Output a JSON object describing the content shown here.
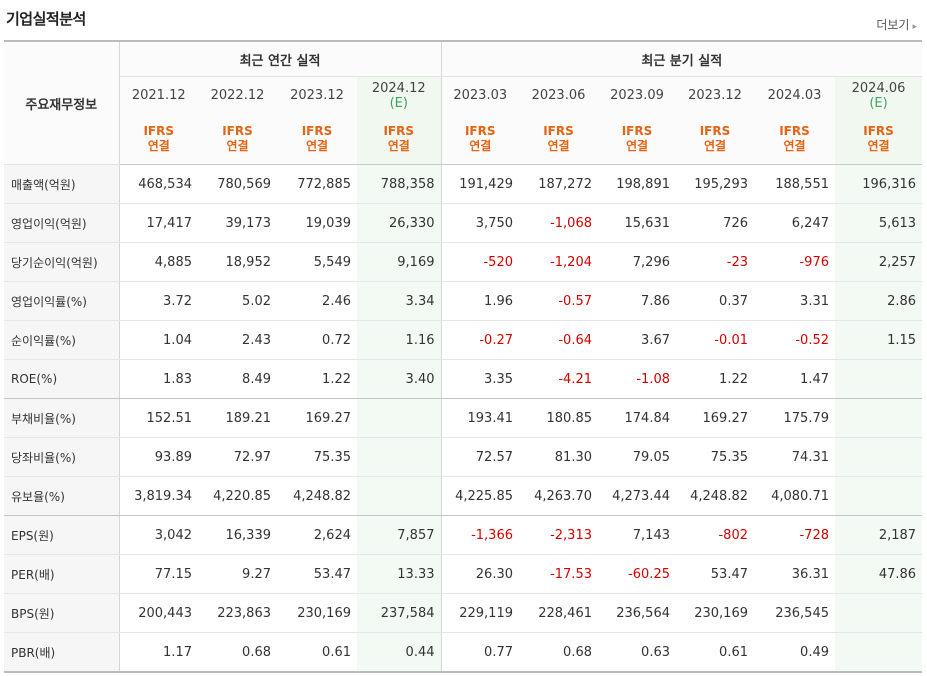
{
  "section_title": "기업실적분석",
  "more_label": "더보기",
  "more_arrow": "▸",
  "header": {
    "label_col": "주요재무정보",
    "annual_group": "최근 연간 실적",
    "quarter_group": "최근 분기 실적",
    "periods": [
      {
        "date": "2021.12",
        "est": ""
      },
      {
        "date": "2022.12",
        "est": ""
      },
      {
        "date": "2023.12",
        "est": ""
      },
      {
        "date": "2024.12",
        "est": "(E)"
      },
      {
        "date": "2023.03",
        "est": ""
      },
      {
        "date": "2023.06",
        "est": ""
      },
      {
        "date": "2023.09",
        "est": ""
      },
      {
        "date": "2023.12",
        "est": ""
      },
      {
        "date": "2024.03",
        "est": ""
      },
      {
        "date": "2024.06",
        "est": "(E)"
      }
    ],
    "std_line1": "IFRS",
    "std_line2": "연결"
  },
  "rows": [
    {
      "label": "매출액(억원)",
      "values": [
        "468,534",
        "780,569",
        "772,885",
        "788,358",
        "191,429",
        "187,272",
        "198,891",
        "195,293",
        "188,551",
        "196,316"
      ]
    },
    {
      "label": "영업이익(억원)",
      "values": [
        "17,417",
        "39,173",
        "19,039",
        "26,330",
        "3,750",
        "-1,068",
        "15,631",
        "726",
        "6,247",
        "5,613"
      ]
    },
    {
      "label": "당기순이익(억원)",
      "values": [
        "4,885",
        "18,952",
        "5,549",
        "9,169",
        "-520",
        "-1,204",
        "7,296",
        "-23",
        "-976",
        "2,257"
      ]
    },
    {
      "label": "영업이익률(%)",
      "values": [
        "3.72",
        "5.02",
        "2.46",
        "3.34",
        "1.96",
        "-0.57",
        "7.86",
        "0.37",
        "3.31",
        "2.86"
      ]
    },
    {
      "label": "순이익률(%)",
      "values": [
        "1.04",
        "2.43",
        "0.72",
        "1.16",
        "-0.27",
        "-0.64",
        "3.67",
        "-0.01",
        "-0.52",
        "1.15"
      ]
    },
    {
      "label": "ROE(%)",
      "values": [
        "1.83",
        "8.49",
        "1.22",
        "3.40",
        "3.35",
        "-4.21",
        "-1.08",
        "1.22",
        "1.47",
        ""
      ]
    },
    {
      "label": "부채비율(%)",
      "values": [
        "152.51",
        "189.21",
        "169.27",
        "",
        "193.41",
        "180.85",
        "174.84",
        "169.27",
        "175.79",
        ""
      ]
    },
    {
      "label": "당좌비율(%)",
      "values": [
        "93.89",
        "72.97",
        "75.35",
        "",
        "72.57",
        "81.30",
        "79.05",
        "75.35",
        "74.31",
        ""
      ]
    },
    {
      "label": "유보율(%)",
      "values": [
        "3,819.34",
        "4,220.85",
        "4,248.82",
        "",
        "4,225.85",
        "4,263.70",
        "4,273.44",
        "4,248.82",
        "4,080.71",
        ""
      ]
    },
    {
      "label": "EPS(원)",
      "values": [
        "3,042",
        "16,339",
        "2,624",
        "7,857",
        "-1,366",
        "-2,313",
        "7,143",
        "-802",
        "-728",
        "2,187"
      ]
    },
    {
      "label": "PER(배)",
      "values": [
        "77.15",
        "9.27",
        "53.47",
        "13.33",
        "26.30",
        "-17.53",
        "-60.25",
        "53.47",
        "36.31",
        "47.86"
      ]
    },
    {
      "label": "BPS(원)",
      "values": [
        "200,443",
        "223,863",
        "230,169",
        "237,584",
        "229,119",
        "228,461",
        "236,564",
        "230,169",
        "236,545",
        ""
      ]
    },
    {
      "label": "PBR(배)",
      "values": [
        "1.17",
        "0.68",
        "0.61",
        "0.44",
        "0.77",
        "0.68",
        "0.63",
        "0.61",
        "0.49",
        ""
      ]
    }
  ]
}
